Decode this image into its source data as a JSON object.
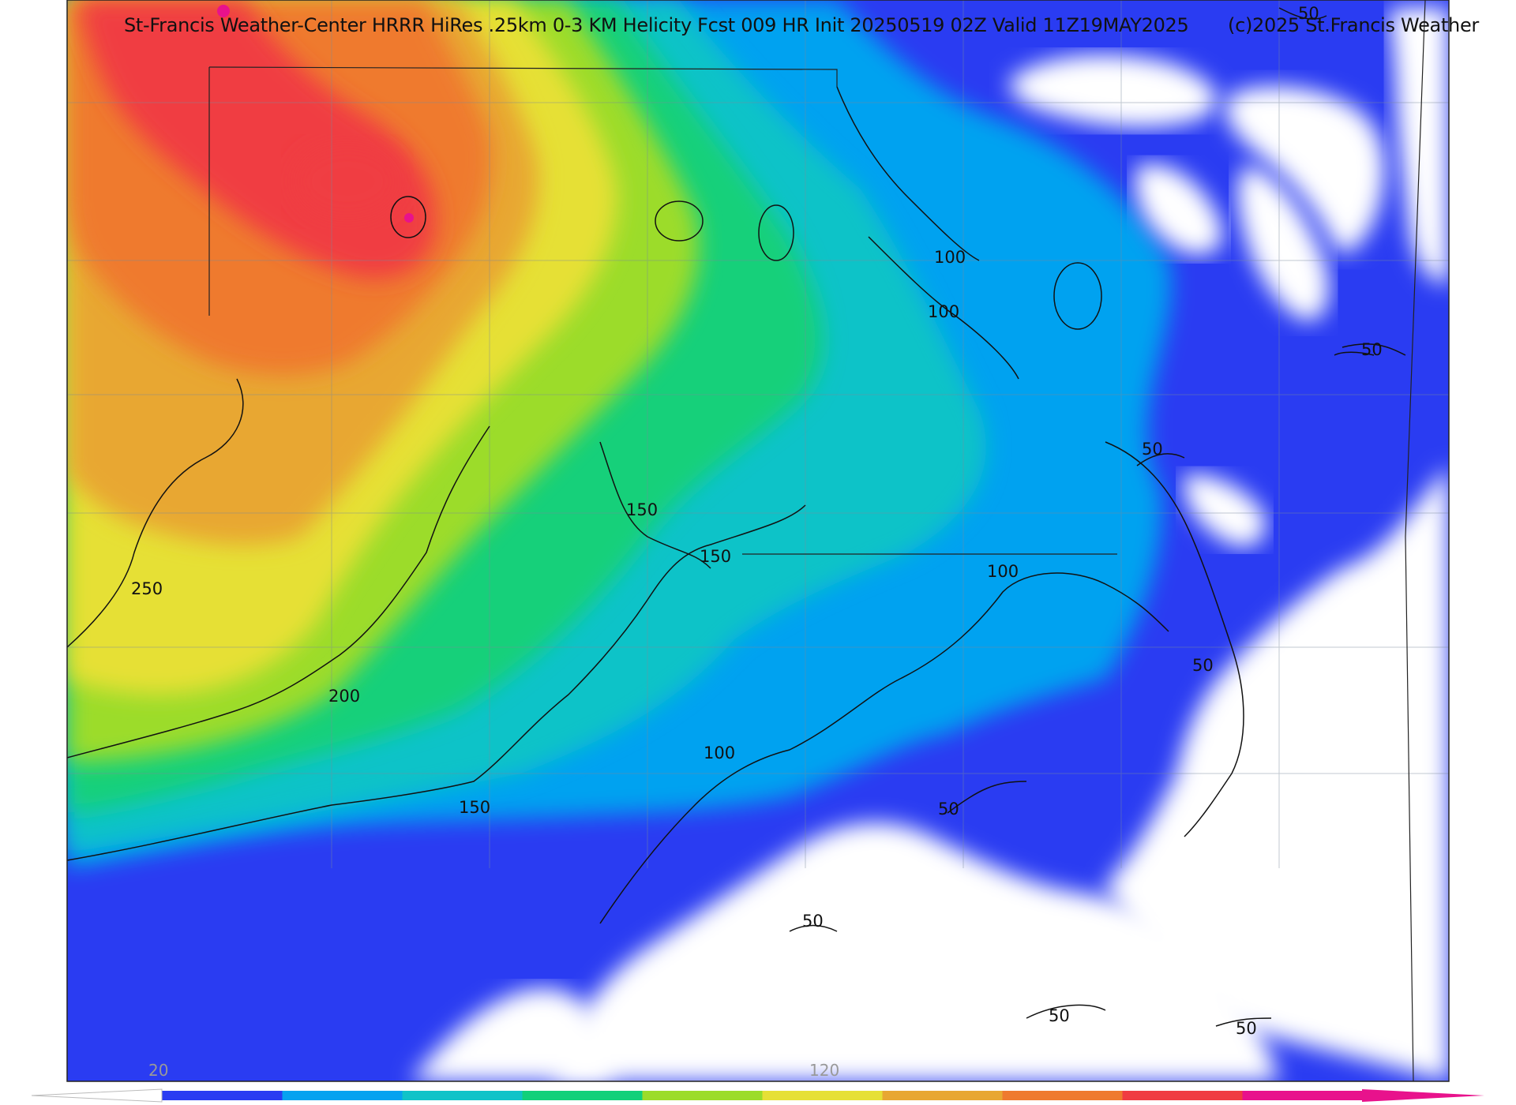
{
  "header": {
    "title": "St-Francis Weather-Center HRRR HiRes .25km 0-3 KM Helicity Fcst 009 HR Init 20250519 02Z  Valid 11Z19MAY2025",
    "copyright": "(c)2025 St.Francis Weather"
  },
  "colors": {
    "white": "#ffffff",
    "blue": "#2a3cf2",
    "sky": "#06a2f0",
    "teal": "#10c3c8",
    "green": "#12d07a",
    "lime": "#9cdc2a",
    "yellow": "#e6e036",
    "amber": "#e8a732",
    "orange": "#ef7a2e",
    "red": "#f03c42",
    "magenta": "#e8128c"
  },
  "contours": {
    "labels": [
      "50",
      "50",
      "50",
      "50",
      "50",
      "50",
      "50",
      "50",
      "100",
      "100",
      "100",
      "100",
      "150",
      "150",
      "150",
      "200",
      "250"
    ]
  },
  "colorbar": {
    "tick_labels": [
      "20",
      "120"
    ],
    "bins": [
      "#2a3cf2",
      "#06a2f0",
      "#10c3c8",
      "#12d07a",
      "#9cdc2a",
      "#e6e036",
      "#e8a732",
      "#ef7a2e",
      "#f03c42",
      "#e8128c"
    ]
  }
}
